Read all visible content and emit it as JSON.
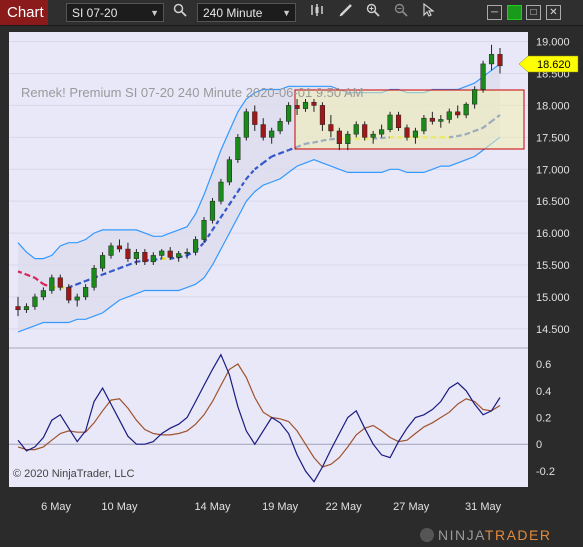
{
  "toolbar": {
    "tab_label": "Chart",
    "instrument": "SI 07-20",
    "interval": "240 Minute",
    "icons": [
      "search-icon",
      "bar-style-icon",
      "draw-pencil-icon",
      "zoom-in-icon",
      "zoom-out-icon",
      "pointer-icon"
    ],
    "window_buttons": [
      "minimize-icon",
      "restore-icon",
      "close-icon"
    ]
  },
  "chart": {
    "title_label": "Remek!  Premium  SI 07-20  240 Minute  2020-06-01 9:50 AM",
    "copyright": "© 2020 NinjaTrader, LLC",
    "brand": "NINJATRADER",
    "brand_a": "NINJA",
    "brand_b": "TRADER",
    "current_price": "18.620",
    "price_ticks": [
      "19.000",
      "18.500",
      "18.000",
      "17.500",
      "17.000",
      "16.500",
      "16.000",
      "15.500",
      "15.000",
      "14.500"
    ],
    "osc_ticks": [
      "0.6",
      "0.4",
      "0.2",
      "0",
      "-0.2"
    ],
    "date_labels": [
      "6 May",
      "10 May",
      "14 May",
      "19 May",
      "22 May",
      "27 May",
      "31 May"
    ],
    "colors": {
      "panel_bg": "#e8e8f8",
      "up_candle": "#1a8a1a",
      "down_candle": "#a01818",
      "band": "#3399ff",
      "basis_dashed": "#3355cc",
      "osc_line": "#1a1a80",
      "signal_line": "#a0522d",
      "price_marker": "#ffff00",
      "box_border": "#cc0000"
    }
  },
  "chart_data": {
    "type": "candlestick",
    "panels": [
      {
        "name": "price",
        "ylim": [
          14.2,
          19.15
        ],
        "ohlc": [
          [
            14.85,
            15.0,
            14.7,
            14.8
          ],
          [
            14.8,
            14.9,
            14.75,
            14.85
          ],
          [
            14.85,
            15.05,
            14.8,
            15.0
          ],
          [
            15.0,
            15.15,
            14.95,
            15.1
          ],
          [
            15.1,
            15.35,
            15.05,
            15.3
          ],
          [
            15.3,
            15.35,
            15.1,
            15.15
          ],
          [
            15.15,
            15.2,
            14.9,
            14.95
          ],
          [
            14.95,
            15.05,
            14.85,
            15.0
          ],
          [
            15.0,
            15.2,
            14.95,
            15.15
          ],
          [
            15.15,
            15.5,
            15.1,
            15.45
          ],
          [
            15.45,
            15.7,
            15.4,
            15.65
          ],
          [
            15.65,
            15.85,
            15.6,
            15.8
          ],
          [
            15.8,
            15.9,
            15.7,
            15.75
          ],
          [
            15.75,
            15.85,
            15.55,
            15.6
          ],
          [
            15.6,
            15.75,
            15.5,
            15.7
          ],
          [
            15.7,
            15.75,
            15.5,
            15.55
          ],
          [
            15.55,
            15.7,
            15.5,
            15.65
          ],
          [
            15.65,
            15.75,
            15.6,
            15.72
          ],
          [
            15.72,
            15.78,
            15.58,
            15.62
          ],
          [
            15.62,
            15.72,
            15.55,
            15.68
          ],
          [
            15.68,
            15.76,
            15.6,
            15.7
          ],
          [
            15.7,
            15.95,
            15.65,
            15.9
          ],
          [
            15.9,
            16.25,
            15.85,
            16.2
          ],
          [
            16.2,
            16.55,
            16.15,
            16.5
          ],
          [
            16.5,
            16.85,
            16.45,
            16.8
          ],
          [
            16.8,
            17.2,
            16.75,
            17.15
          ],
          [
            17.15,
            17.55,
            17.1,
            17.5
          ],
          [
            17.5,
            17.95,
            17.45,
            17.9
          ],
          [
            17.9,
            18.0,
            17.6,
            17.7
          ],
          [
            17.7,
            17.8,
            17.45,
            17.5
          ],
          [
            17.5,
            17.65,
            17.4,
            17.6
          ],
          [
            17.6,
            17.8,
            17.55,
            17.75
          ],
          [
            17.75,
            18.05,
            17.7,
            18.0
          ],
          [
            18.0,
            18.1,
            17.85,
            17.95
          ],
          [
            17.95,
            18.1,
            17.9,
            18.05
          ],
          [
            18.05,
            18.1,
            17.9,
            18.0
          ],
          [
            18.0,
            18.05,
            17.6,
            17.7
          ],
          [
            17.7,
            17.85,
            17.5,
            17.6
          ],
          [
            17.6,
            17.65,
            17.3,
            17.4
          ],
          [
            17.4,
            17.6,
            17.3,
            17.55
          ],
          [
            17.55,
            17.75,
            17.5,
            17.7
          ],
          [
            17.7,
            17.75,
            17.45,
            17.5
          ],
          [
            17.5,
            17.6,
            17.4,
            17.55
          ],
          [
            17.55,
            17.7,
            17.5,
            17.62
          ],
          [
            17.62,
            17.9,
            17.58,
            17.85
          ],
          [
            17.85,
            17.9,
            17.6,
            17.65
          ],
          [
            17.65,
            17.7,
            17.45,
            17.5
          ],
          [
            17.5,
            17.65,
            17.4,
            17.6
          ],
          [
            17.6,
            17.85,
            17.55,
            17.8
          ],
          [
            17.8,
            17.9,
            17.7,
            17.75
          ],
          [
            17.75,
            17.85,
            17.65,
            17.78
          ],
          [
            17.78,
            17.95,
            17.72,
            17.9
          ],
          [
            17.9,
            18.0,
            17.8,
            17.85
          ],
          [
            17.85,
            18.05,
            17.8,
            18.02
          ],
          [
            18.02,
            18.3,
            17.95,
            18.25
          ],
          [
            18.25,
            18.7,
            18.2,
            18.65
          ],
          [
            18.65,
            18.95,
            18.55,
            18.8
          ],
          [
            18.8,
            18.9,
            18.5,
            18.62
          ]
        ],
        "band_upper": [
          15.85,
          15.7,
          15.6,
          15.6,
          15.65,
          15.8,
          15.85,
          15.85,
          15.9,
          16.0,
          16.05,
          16.05,
          16.05,
          16.05,
          16.05,
          16.0,
          15.95,
          15.95,
          16.0,
          16.05,
          16.1,
          16.3,
          16.6,
          16.95,
          17.3,
          17.6,
          17.9,
          18.1,
          18.2,
          18.25,
          18.25,
          18.25,
          18.3,
          18.3,
          18.3,
          18.3,
          18.3,
          18.3,
          18.25,
          18.2,
          18.2,
          18.2,
          18.2,
          18.2,
          18.25,
          18.25,
          18.2,
          18.2,
          18.2,
          18.25,
          18.25,
          18.25,
          18.25,
          18.3,
          18.35,
          18.45,
          18.55,
          18.65
        ],
        "band_lower": [
          14.45,
          14.5,
          14.55,
          14.6,
          14.6,
          14.6,
          14.6,
          14.65,
          14.65,
          14.7,
          14.75,
          14.85,
          14.95,
          15.0,
          15.05,
          15.1,
          15.1,
          15.1,
          15.1,
          15.1,
          15.15,
          15.2,
          15.3,
          15.5,
          15.75,
          16.0,
          16.25,
          16.5,
          16.65,
          16.75,
          16.8,
          16.85,
          16.95,
          17.05,
          17.1,
          17.15,
          17.1,
          17.05,
          17.0,
          16.95,
          16.95,
          16.95,
          16.95,
          16.95,
          17.0,
          17.0,
          16.95,
          16.95,
          16.95,
          17.0,
          17.05,
          17.05,
          17.1,
          17.15,
          17.2,
          17.3,
          17.4,
          17.5
        ],
        "basis": [
          15.4,
          15.35,
          15.3,
          15.2,
          15.15,
          15.15,
          15.15,
          15.2,
          15.25,
          15.3,
          15.35,
          15.4,
          15.45,
          15.5,
          15.55,
          15.57,
          15.58,
          15.6,
          15.6,
          15.62,
          15.65,
          15.72,
          15.85,
          16.05,
          16.25,
          16.45,
          16.65,
          16.85,
          17.0,
          17.1,
          17.2,
          17.25,
          17.3,
          17.35,
          17.4,
          17.42,
          17.45,
          17.47,
          17.48,
          17.48,
          17.48,
          17.48,
          17.48,
          17.49,
          17.5,
          17.5,
          17.5,
          17.5,
          17.5,
          17.5,
          17.5,
          17.5,
          17.52,
          17.55,
          17.6,
          17.65,
          17.75,
          17.85
        ]
      },
      {
        "name": "oscillator",
        "ylim": [
          -0.32,
          0.72
        ],
        "osc": [
          0.03,
          -0.05,
          -0.02,
          0.05,
          0.18,
          0.22,
          0.12,
          0.02,
          0.1,
          0.32,
          0.42,
          0.3,
          0.18,
          0.06,
          0.0,
          0.0,
          0.02,
          0.08,
          0.12,
          0.15,
          0.2,
          0.32,
          0.44,
          0.56,
          0.67,
          0.52,
          0.28,
          0.1,
          0.0,
          0.1,
          0.2,
          0.16,
          0.08,
          -0.08,
          -0.2,
          -0.28,
          -0.17,
          -0.04,
          0.08,
          0.2,
          0.25,
          0.12,
          0.0,
          -0.08,
          -0.1,
          0.02,
          0.12,
          0.2,
          0.22,
          0.26,
          0.32,
          0.42,
          0.46,
          0.4,
          0.3,
          0.22,
          0.25,
          0.35
        ],
        "signal": [
          -0.02,
          -0.04,
          -0.04,
          -0.02,
          0.03,
          0.08,
          0.1,
          0.09,
          0.09,
          0.16,
          0.25,
          0.33,
          0.34,
          0.27,
          0.18,
          0.11,
          0.08,
          0.07,
          0.07,
          0.08,
          0.1,
          0.15,
          0.22,
          0.32,
          0.44,
          0.56,
          0.6,
          0.5,
          0.35,
          0.24,
          0.2,
          0.19,
          0.17,
          0.1,
          0.0,
          -0.1,
          -0.17,
          -0.15,
          -0.1,
          -0.02,
          0.07,
          0.12,
          0.14,
          0.1,
          0.05,
          0.02,
          0.03,
          0.08,
          0.13,
          0.16,
          0.2,
          0.24,
          0.3,
          0.34,
          0.32,
          0.26,
          0.25,
          0.29
        ]
      }
    ],
    "x_ticks": [
      "6 May",
      "10 May",
      "14 May",
      "19 May",
      "22 May",
      "27 May",
      "31 May"
    ]
  }
}
